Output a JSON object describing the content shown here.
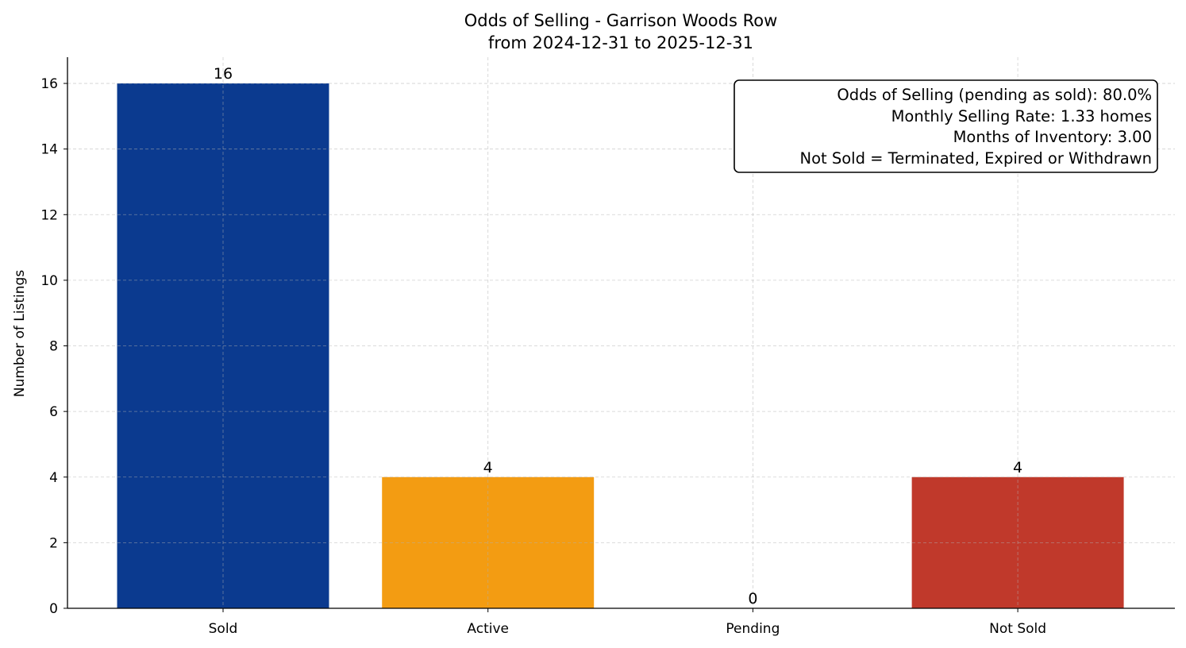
{
  "chart_data": {
    "type": "bar",
    "title": "Odds of Selling - Garrison Woods Row",
    "subtitle": "from 2024-12-31 to 2025-12-31",
    "xlabel": "",
    "ylabel": "Number of Listings",
    "categories": [
      "Sold",
      "Active",
      "Pending",
      "Not Sold"
    ],
    "values": [
      16,
      4,
      0,
      4
    ],
    "data_labels": [
      "16",
      "4",
      "0",
      "4"
    ],
    "colors": [
      "#0b3a8f",
      "#f39c12",
      "#7f8c8d",
      "#c0392b"
    ],
    "ylim": [
      0,
      16.8
    ],
    "yticks": [
      0,
      2,
      4,
      6,
      8,
      10,
      12,
      14,
      16
    ],
    "grid": true,
    "annotation": {
      "position": "top-right",
      "lines": [
        "Odds of Selling (pending as sold): 80.0%",
        "Monthly Selling Rate: 1.33 homes",
        "Months of Inventory: 3.00",
        "Not Sold = Terminated, Expired or Withdrawn"
      ]
    }
  }
}
